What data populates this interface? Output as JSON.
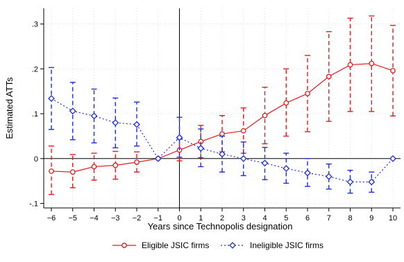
{
  "chart_data": {
    "type": "line",
    "xlabel": "Years since Technopolis designation",
    "ylabel": "Estimated ATTs",
    "xlim": [
      -6,
      10
    ],
    "ylim": [
      -0.11,
      0.335
    ],
    "x_ticks": [
      -6,
      -5,
      -4,
      -3,
      -2,
      -1,
      0,
      1,
      2,
      3,
      4,
      5,
      6,
      7,
      8,
      9,
      10
    ],
    "y_ticks": [
      {
        "value": -0.1,
        "label": "-.1"
      },
      {
        "value": 0,
        "label": "0"
      },
      {
        "value": 0.1,
        "label": ".1"
      },
      {
        "value": 0.2,
        "label": ".2"
      },
      {
        "value": 0.3,
        "label": ".3"
      }
    ],
    "grid": true,
    "reference_lines": {
      "x": 0,
      "y": 0
    },
    "legend_position": "bottom",
    "series": [
      {
        "name": "Eligible JSIC firms",
        "color": "#e8191c",
        "marker": "circle",
        "line_style": "solid",
        "x": [
          -6,
          -5,
          -4,
          -3,
          -2,
          -1,
          0,
          1,
          2,
          3,
          4,
          5,
          6,
          7,
          8,
          9,
          10
        ],
        "values": [
          -0.028,
          -0.03,
          -0.018,
          -0.015,
          -0.008,
          0.0,
          0.019,
          0.038,
          0.055,
          0.062,
          0.096,
          0.124,
          0.145,
          0.183,
          0.209,
          0.212,
          0.196
        ],
        "ci_lower": [
          -0.08,
          -0.065,
          -0.048,
          -0.046,
          -0.03,
          0.0,
          -0.005,
          0.002,
          0.015,
          0.012,
          0.033,
          0.05,
          0.06,
          0.083,
          0.105,
          0.105,
          0.095
        ],
        "ci_upper": [
          0.028,
          0.009,
          0.012,
          0.016,
          0.015,
          0.0,
          0.043,
          0.074,
          0.096,
          0.113,
          0.159,
          0.2,
          0.23,
          0.283,
          0.313,
          0.318,
          0.297
        ]
      },
      {
        "name": "Ineligible JSIC firms",
        "color": "#1c2ce8",
        "marker": "diamond",
        "line_style": "dotted",
        "x": [
          -6,
          -5,
          -4,
          -3,
          -2,
          -1,
          0,
          1,
          2,
          3,
          4,
          5,
          6,
          7,
          8,
          9,
          10
        ],
        "values": [
          0.134,
          0.106,
          0.095,
          0.08,
          0.076,
          0.0,
          0.047,
          0.023,
          0.01,
          0.0,
          -0.01,
          -0.022,
          -0.032,
          -0.04,
          -0.052,
          -0.052,
          0.0
        ],
        "ci_lower": [
          0.065,
          0.042,
          0.035,
          0.024,
          0.028,
          0.0,
          0.003,
          -0.018,
          -0.03,
          -0.038,
          -0.047,
          -0.055,
          -0.062,
          -0.068,
          -0.077,
          -0.075,
          0.0
        ],
        "ci_upper": [
          0.203,
          0.17,
          0.155,
          0.135,
          0.126,
          0.0,
          0.092,
          0.066,
          0.05,
          0.037,
          0.025,
          0.012,
          0.0,
          -0.012,
          -0.026,
          -0.03,
          0.0
        ]
      }
    ]
  }
}
